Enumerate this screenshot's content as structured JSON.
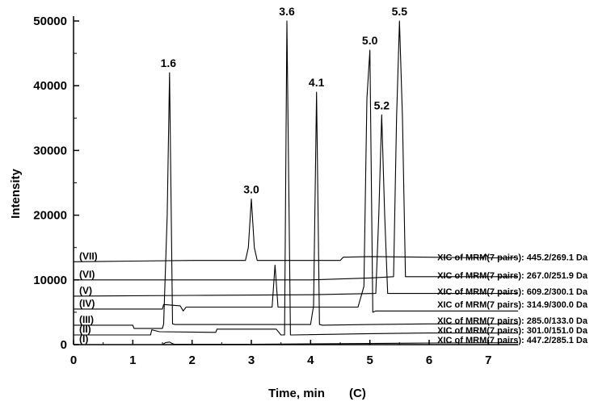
{
  "chart_data": {
    "type": "line",
    "xlabel": "Time, min",
    "ylabel": "Intensity",
    "panel_label": "(C)",
    "xlim": [
      0,
      7.5
    ],
    "ylim": [
      0,
      50000
    ],
    "x_ticks": [
      0,
      1,
      2,
      3,
      4,
      5,
      6,
      7
    ],
    "y_ticks": [
      0,
      10000,
      20000,
      30000,
      40000,
      50000
    ],
    "series": [
      {
        "id": "(I)",
        "info": "XIC of MRM(7 pairs): 447.2/285.1 Da",
        "baseline": 0,
        "x": [
          0,
          1.5,
          1.55,
          1.62,
          1.66,
          1.7,
          3.0,
          4.5,
          6.0,
          7.5
        ],
        "y": [
          0,
          0,
          300,
          400,
          200,
          50,
          50,
          150,
          250,
          300
        ]
      },
      {
        "id": "(II)",
        "info": "XIC of MRM(7 pairs): 301.0/151.0 Da",
        "baseline": 1500,
        "x": [
          0,
          1.3,
          1.32,
          1.45,
          2.4,
          2.42,
          3.42,
          3.5,
          3.56,
          3.6,
          3.66,
          3.7,
          5.0,
          6.0,
          7.5
        ],
        "y": [
          1500,
          1500,
          2300,
          2000,
          1900,
          2400,
          2400,
          1500,
          1500,
          50000,
          1500,
          1500,
          1700,
          1800,
          1800
        ]
      },
      {
        "id": "(III)",
        "info": "XIC of MRM(7 pairs): 285.0/133.0 Da",
        "baseline": 3000,
        "x": [
          0,
          1.0,
          1.02,
          1.5,
          1.52,
          1.58,
          1.62,
          1.67,
          1.72,
          2.5,
          4.0,
          4.05,
          4.1,
          4.15,
          4.2,
          5.0,
          6.0,
          7.5
        ],
        "y": [
          3000,
          3000,
          2500,
          2500,
          3200,
          20000,
          42000,
          3200,
          3100,
          3100,
          3100,
          6000,
          39000,
          3100,
          3000,
          3100,
          3200,
          3200
        ]
      },
      {
        "id": "(IV)",
        "info": "XIC of MRM(7 pairs): 314.9/300.0 Da",
        "baseline": 5500,
        "x": [
          0,
          1.5,
          1.52,
          1.8,
          1.85,
          1.9,
          3.35,
          3.4,
          3.45,
          4.8,
          4.9,
          4.95,
          5.0,
          5.05,
          5.1,
          6.0,
          7.5
        ],
        "y": [
          5500,
          5500,
          6200,
          6000,
          5200,
          5800,
          5800,
          12300,
          5800,
          5800,
          9000,
          38000,
          45500,
          5000,
          5200,
          5200,
          5200
        ]
      },
      {
        "id": "(V)",
        "info": "XIC of MRM(7 pairs): 609.2/300.1 Da",
        "baseline": 7500,
        "x": [
          0,
          2.0,
          4.0,
          5.1,
          5.15,
          5.2,
          5.25,
          5.3,
          6.0,
          7.5
        ],
        "y": [
          7500,
          7600,
          7700,
          7900,
          20000,
          35500,
          20000,
          7900,
          7900,
          7900
        ]
      },
      {
        "id": "(VI)",
        "info": "XIC of MRM(7 pairs): 267.0/251.9 Da",
        "baseline": 10000,
        "x": [
          0,
          2.0,
          4.0,
          5.0,
          5.4,
          5.45,
          5.5,
          5.55,
          5.6,
          6.0,
          7.5
        ],
        "y": [
          10000,
          10000,
          10000,
          10300,
          10500,
          35000,
          50000,
          35000,
          10500,
          10500,
          10500
        ]
      },
      {
        "id": "(VII)",
        "info": "XIC of MRM(7 pairs): 445.2/269.1 Da",
        "baseline": 12800,
        "x": [
          0,
          1.0,
          2.0,
          2.9,
          2.95,
          3.0,
          3.05,
          3.1,
          4.5,
          4.55,
          5.0,
          6.0,
          6.9,
          6.95,
          7.0,
          7.5
        ],
        "y": [
          12800,
          12900,
          13000,
          13000,
          15000,
          22500,
          15000,
          13000,
          13000,
          13500,
          13600,
          13500,
          13400,
          14000,
          13400,
          13400
        ]
      }
    ],
    "peak_labels": [
      {
        "text": "1.6",
        "x": 1.6,
        "y": 42000
      },
      {
        "text": "3.0",
        "x": 3.0,
        "y": 22500
      },
      {
        "text": "3.6",
        "x": 3.6,
        "y": 50000
      },
      {
        "text": "4.1",
        "x": 4.1,
        "y": 39000
      },
      {
        "text": "5.0",
        "x": 5.0,
        "y": 45500
      },
      {
        "text": "5.2",
        "x": 5.2,
        "y": 35500
      },
      {
        "text": "5.5",
        "x": 5.5,
        "y": 50000
      }
    ]
  }
}
